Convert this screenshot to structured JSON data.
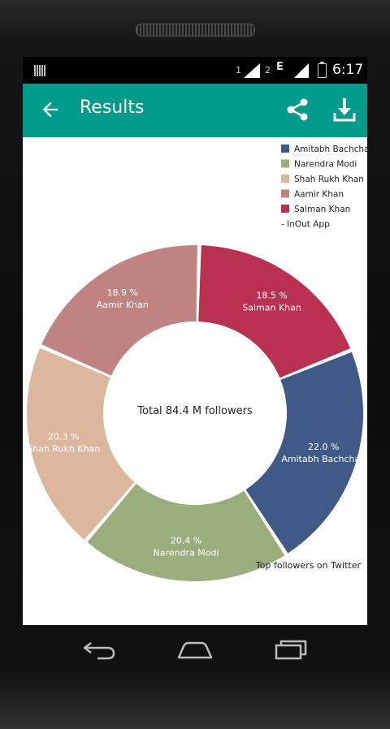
{
  "status": {
    "sim1": "1",
    "sim2": "2",
    "network": "E",
    "time": "6:17"
  },
  "appbar": {
    "title": "Results",
    "icons": [
      "back-arrow-icon",
      "share-icon",
      "download-icon"
    ]
  },
  "chart_data": {
    "type": "pie",
    "style": "donut",
    "center_text": "Total 84.4 M followers",
    "description": "Top followers on Twitter",
    "legend_note": "- InOut App",
    "legend_position": "top-right",
    "slices": [
      {
        "label": "Amitabh Bachchan",
        "percent_label": "22.0 %",
        "value": 22.0,
        "color": "#3f5a86"
      },
      {
        "label": "Narendra Modi",
        "percent_label": "20.4 %",
        "value": 20.4,
        "color": "#9aad7d"
      },
      {
        "label": "Shah Rukh Khan",
        "percent_label": "20.3 %",
        "value": 20.3,
        "color": "#dcb79e"
      },
      {
        "label": "Aamir Khan",
        "percent_label": "18.9 %",
        "value": 18.9,
        "color": "#bf8482"
      },
      {
        "label": "Salman Khan",
        "percent_label": "18.5 %",
        "value": 18.5,
        "color": "#ba3051"
      }
    ]
  },
  "navbar": {
    "buttons": [
      "back-nav-icon",
      "home-nav-icon",
      "recent-apps-icon"
    ]
  }
}
